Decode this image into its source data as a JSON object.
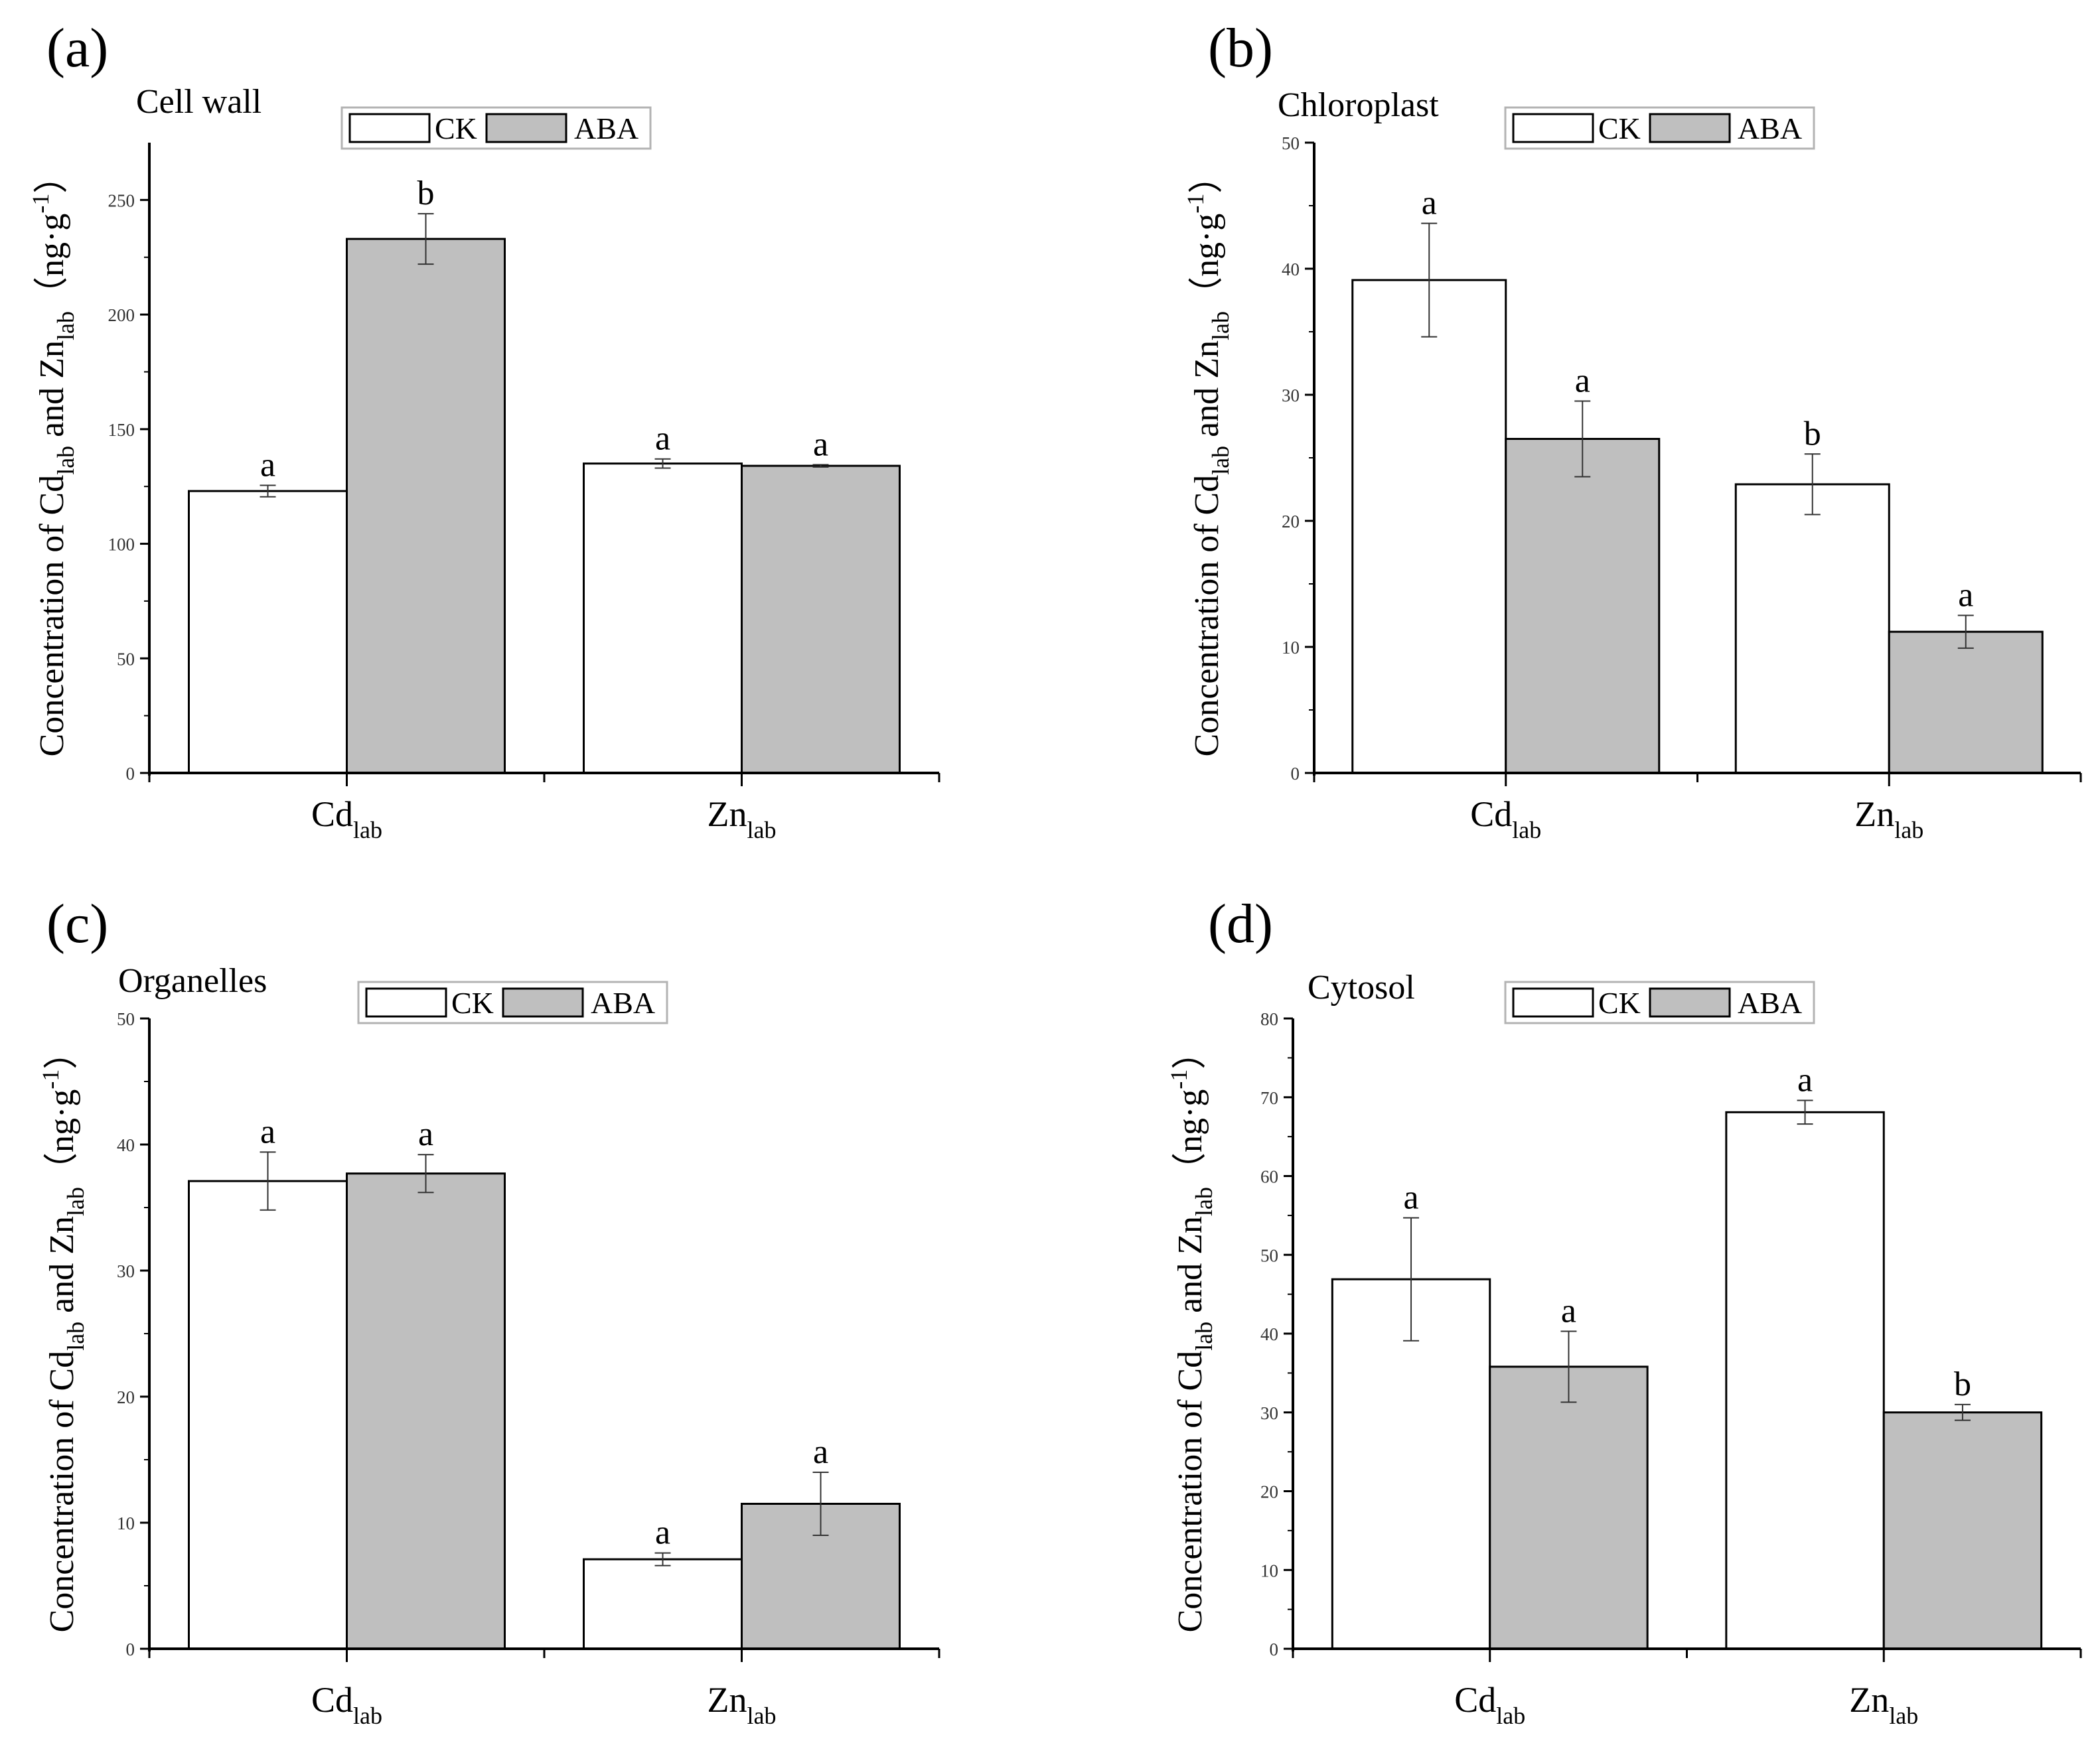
{
  "figure": {
    "colors": {
      "CK": "#ffffff",
      "ABA": "#bfbfbf",
      "stroke": "#000000",
      "legend_border": "#b3b3b3"
    }
  },
  "chart_data": [
    {
      "type": "bar",
      "panel": "(a)",
      "title": "Cell wall",
      "categories": [
        {
          "main": "Cd",
          "sub": "lab"
        },
        {
          "main": "Zn",
          "sub": "lab"
        }
      ],
      "ylabel": {
        "prefix": "Concentration of ",
        "el1": "Cd",
        "sub1": "lab",
        "mid": " and ",
        "el2": "Zn",
        "sub2": "lab",
        "unit_open": "（ng·g",
        "unit_sup": "-1",
        "unit_close": "）"
      },
      "ylim": [
        0,
        275
      ],
      "yticks": [
        0,
        50,
        100,
        150,
        200,
        250
      ],
      "legend": [
        "CK",
        "ABA"
      ],
      "series": [
        {
          "name": "CK",
          "values": [
            123,
            135
          ],
          "errors": [
            2.5,
            2
          ],
          "labels": [
            "a",
            "a"
          ]
        },
        {
          "name": "ABA",
          "values": [
            233,
            134
          ],
          "errors": [
            11,
            0.5
          ],
          "labels": [
            "b",
            "a"
          ]
        }
      ]
    },
    {
      "type": "bar",
      "panel": "(b)",
      "title": "Chloroplast",
      "categories": [
        {
          "main": "Cd",
          "sub": "lab"
        },
        {
          "main": "Zn",
          "sub": "lab"
        }
      ],
      "ylabel": {
        "prefix": "Concentration of ",
        "el1": "Cd",
        "sub1": "lab",
        "mid": " and ",
        "el2": "Zn",
        "sub2": "lab",
        "unit_open": "（ng·g",
        "unit_sup": "-1",
        "unit_close": "）"
      },
      "ylim": [
        0,
        50
      ],
      "yticks": [
        0,
        10,
        20,
        30,
        40,
        50
      ],
      "legend": [
        "CK",
        "ABA"
      ],
      "series": [
        {
          "name": "CK",
          "values": [
            39.1,
            22.9
          ],
          "errors": [
            4.5,
            2.4
          ],
          "labels": [
            "a",
            "b"
          ]
        },
        {
          "name": "ABA",
          "values": [
            26.5,
            11.2
          ],
          "errors": [
            3.0,
            1.3
          ],
          "labels": [
            "a",
            "a"
          ]
        }
      ]
    },
    {
      "type": "bar",
      "panel": "(c)",
      "title": "Organelles",
      "categories": [
        {
          "main": "Cd",
          "sub": "lab"
        },
        {
          "main": "Zn",
          "sub": "lab"
        }
      ],
      "ylabel": {
        "prefix": "Concentration of ",
        "el1": "Cd",
        "sub1": "lab",
        "mid": " and ",
        "el2": "Zn",
        "sub2": "lab",
        "unit_open": "（ng·g",
        "unit_sup": "-1",
        "unit_close": "）"
      },
      "ylim": [
        0,
        50
      ],
      "yticks": [
        0,
        10,
        20,
        30,
        40,
        50
      ],
      "legend": [
        "CK",
        "ABA"
      ],
      "series": [
        {
          "name": "CK",
          "values": [
            37.1,
            7.1
          ],
          "errors": [
            2.3,
            0.5
          ],
          "labels": [
            "a",
            "a"
          ]
        },
        {
          "name": "ABA",
          "values": [
            37.7,
            11.5
          ],
          "errors": [
            1.5,
            2.5
          ],
          "labels": [
            "a",
            "a"
          ]
        }
      ]
    },
    {
      "type": "bar",
      "panel": "(d)",
      "title": "Cytosol",
      "categories": [
        {
          "main": "Cd",
          "sub": "lab"
        },
        {
          "main": "Zn",
          "sub": "lab"
        }
      ],
      "ylabel": {
        "prefix": "Concentration of ",
        "el1": "Cd",
        "sub1": "lab",
        "mid": " and ",
        "el2": "Zn",
        "sub2": "lab",
        "unit_open": "（ng·g",
        "unit_sup": "-1",
        "unit_close": "）"
      },
      "ylim": [
        0,
        80
      ],
      "yticks": [
        0,
        10,
        20,
        30,
        40,
        50,
        60,
        70,
        80
      ],
      "legend": [
        "CK",
        "ABA"
      ],
      "series": [
        {
          "name": "CK",
          "values": [
            46.9,
            68.1
          ],
          "errors": [
            7.8,
            1.5
          ],
          "labels": [
            "a",
            "a"
          ]
        },
        {
          "name": "ABA",
          "values": [
            35.8,
            30.0
          ],
          "errors": [
            4.5,
            1.0
          ],
          "labels": [
            "a",
            "b"
          ]
        }
      ]
    }
  ]
}
